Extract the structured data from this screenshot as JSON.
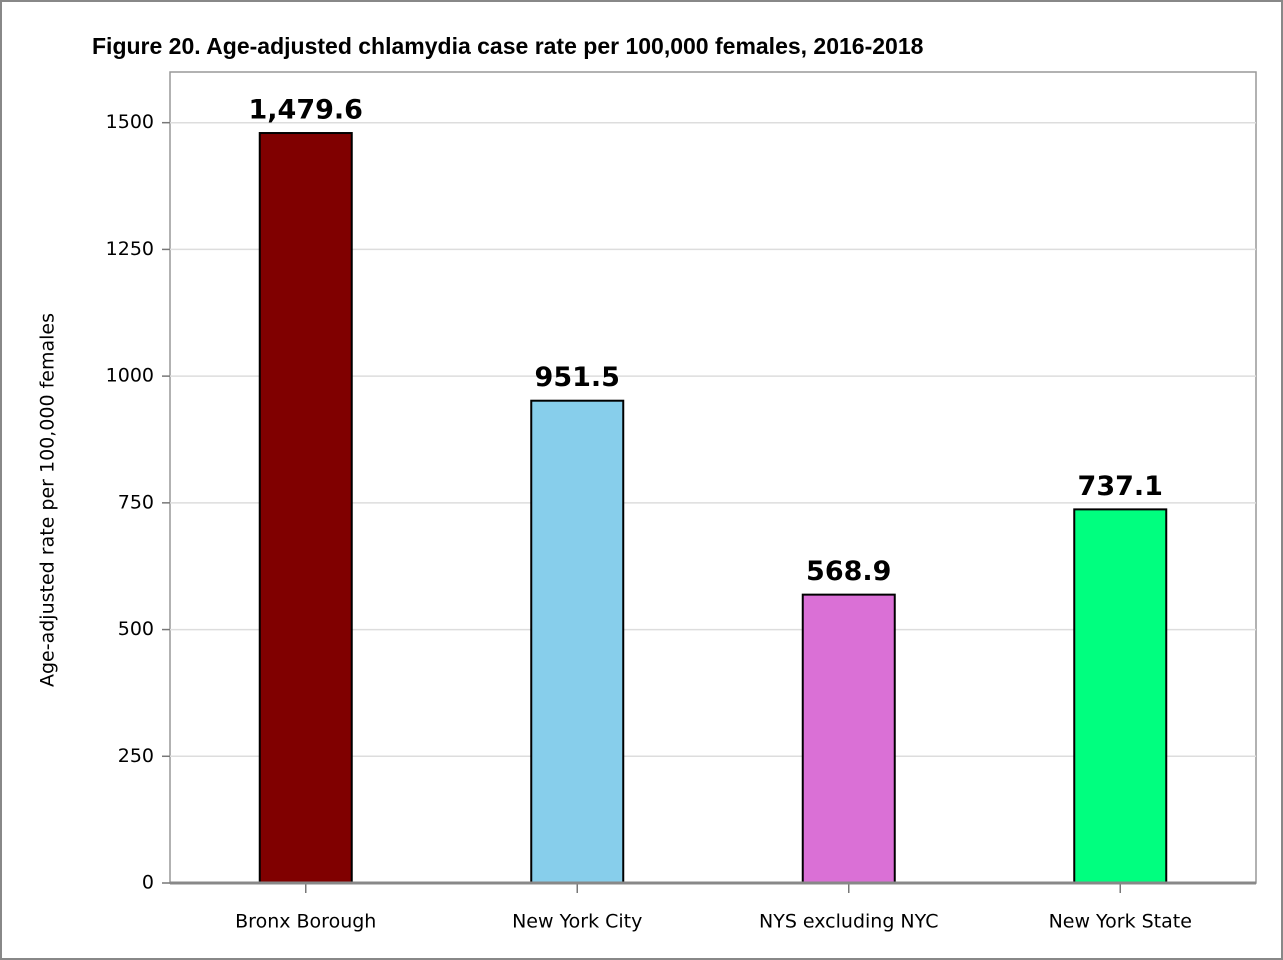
{
  "chart_data": {
    "type": "bar",
    "title": "Figure 20. Age-adjusted chlamydia case rate per 100,000 females, 2016-2018",
    "y_label": "Age-adjusted rate per 100,000 females",
    "categories": [
      "Bronx Borough",
      "New York City",
      "NYS excluding NYC",
      "New York State"
    ],
    "values": [
      1479.6,
      951.5,
      568.9,
      737.1
    ],
    "value_labels": [
      "1,479.6",
      "951.5",
      "568.9",
      "737.1"
    ],
    "colors": [
      "#800000",
      "#87ceeb",
      "#da70d6",
      "#00ff7f"
    ],
    "ylim": [
      0,
      1600
    ],
    "yticks": [
      0,
      250,
      500,
      750,
      1000,
      1250,
      1500
    ],
    "grid": true
  }
}
